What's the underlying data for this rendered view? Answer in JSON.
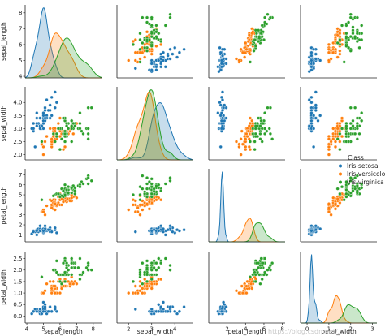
{
  "chart_data": {
    "type": "scatter",
    "subtype": "pairplot",
    "variables": [
      "sepal_length",
      "sepal_width",
      "petal_length",
      "petal_width"
    ],
    "ranges": {
      "sepal_length": [
        3.9,
        8.5
      ],
      "sepal_width": [
        1.8,
        4.6
      ],
      "petal_length": [
        0.3,
        7.6
      ],
      "petal_width": [
        -0.3,
        2.8
      ]
    },
    "ticks": {
      "sepal_length": [
        4,
        5,
        6,
        7,
        8
      ],
      "sepal_width": [
        2.0,
        2.5,
        3.0,
        3.5,
        4.0
      ],
      "petal_length": [
        1,
        2,
        3,
        4,
        5,
        6,
        7
      ],
      "petal_width": [
        0.0,
        0.5,
        1.0,
        1.5,
        2.0,
        2.5
      ]
    },
    "tick_labels": {
      "sepal_length": [
        "4",
        "5",
        "6",
        "7",
        "8"
      ],
      "sepal_width": [
        "2.0",
        "2.5",
        "3.0",
        "3.5",
        "4.0"
      ],
      "petal_length": [
        "1",
        "2",
        "3",
        "4",
        "5",
        "6",
        "7"
      ],
      "petal_width": [
        "0.0",
        "0.5",
        "1.0",
        "1.5",
        "2.0",
        "2.5"
      ]
    },
    "x_tick_labels_shown": {
      "sepal_length": [
        "4",
        "5",
        "6",
        "7",
        "8"
      ],
      "sepal_width": [
        "2",
        "3",
        "4"
      ],
      "petal_length": [
        "2",
        "4",
        "6",
        "8"
      ],
      "petal_width": [
        "0",
        "1",
        "2",
        "3"
      ]
    },
    "x_tick_values_shown": {
      "sepal_length": [
        4,
        5,
        6,
        7,
        8
      ],
      "sepal_width": [
        2,
        3,
        4
      ],
      "petal_length": [
        2,
        4,
        6,
        8
      ],
      "petal_width": [
        0,
        1,
        2,
        3
      ]
    },
    "x_ranges": {
      "sepal_length": [
        3.9,
        8.5
      ],
      "sepal_width": [
        1.5,
        4.8
      ],
      "petal_length": [
        0.0,
        8.3
      ],
      "petal_width": [
        -0.3,
        3.2
      ]
    },
    "legend": {
      "title": "Class",
      "position": "right",
      "entries": [
        "Iris-setosa",
        "Iris-versicolor",
        "Iris-virginica"
      ]
    },
    "colors": {
      "Iris-setosa": "#1f77b4",
      "Iris-versicolor": "#ff7f0e",
      "Iris-virginica": "#2ca02c"
    },
    "series": [
      {
        "name": "Iris-setosa",
        "sepal_length": [
          5.1,
          4.9,
          4.7,
          4.6,
          5.0,
          5.4,
          4.6,
          5.0,
          4.4,
          4.9,
          5.4,
          4.8,
          4.8,
          4.3,
          5.8,
          5.7,
          5.4,
          5.1,
          5.7,
          5.1,
          5.4,
          5.1,
          4.6,
          5.1,
          4.8,
          5.0,
          5.0,
          5.2,
          5.2,
          4.7,
          4.8,
          5.4,
          5.2,
          5.5,
          4.9,
          5.0,
          5.5,
          4.9,
          4.4,
          5.1,
          5.0,
          4.5,
          4.4,
          5.0,
          5.1,
          4.8,
          5.1,
          4.6,
          5.3,
          5.0
        ],
        "sepal_width": [
          3.5,
          3.0,
          3.2,
          3.1,
          3.6,
          3.9,
          3.4,
          3.4,
          2.9,
          3.1,
          3.7,
          3.4,
          3.0,
          3.0,
          4.0,
          4.4,
          3.9,
          3.5,
          3.8,
          3.8,
          3.4,
          3.7,
          3.6,
          3.3,
          3.4,
          3.0,
          3.4,
          3.5,
          3.4,
          3.2,
          3.1,
          3.4,
          4.1,
          4.2,
          3.1,
          3.2,
          3.5,
          3.1,
          3.0,
          3.4,
          3.5,
          2.3,
          3.2,
          3.5,
          3.8,
          3.0,
          3.8,
          3.2,
          3.7,
          3.3
        ],
        "petal_length": [
          1.4,
          1.4,
          1.3,
          1.5,
          1.4,
          1.7,
          1.4,
          1.5,
          1.4,
          1.5,
          1.5,
          1.6,
          1.4,
          1.1,
          1.2,
          1.5,
          1.3,
          1.4,
          1.7,
          1.5,
          1.7,
          1.5,
          1.0,
          1.7,
          1.9,
          1.6,
          1.6,
          1.5,
          1.4,
          1.6,
          1.6,
          1.5,
          1.5,
          1.4,
          1.5,
          1.2,
          1.3,
          1.5,
          1.3,
          1.5,
          1.3,
          1.3,
          1.3,
          1.6,
          1.9,
          1.4,
          1.6,
          1.4,
          1.5,
          1.4
        ],
        "petal_width": [
          0.2,
          0.2,
          0.2,
          0.2,
          0.2,
          0.4,
          0.3,
          0.2,
          0.2,
          0.1,
          0.2,
          0.2,
          0.1,
          0.1,
          0.2,
          0.4,
          0.4,
          0.3,
          0.3,
          0.3,
          0.2,
          0.4,
          0.2,
          0.5,
          0.2,
          0.2,
          0.4,
          0.2,
          0.2,
          0.2,
          0.2,
          0.4,
          0.1,
          0.2,
          0.1,
          0.2,
          0.2,
          0.1,
          0.2,
          0.2,
          0.3,
          0.3,
          0.2,
          0.6,
          0.4,
          0.3,
          0.2,
          0.2,
          0.2,
          0.2
        ]
      },
      {
        "name": "Iris-versicolor",
        "sepal_length": [
          7.0,
          6.4,
          6.9,
          5.5,
          6.5,
          5.7,
          6.3,
          4.9,
          6.6,
          5.2,
          5.0,
          5.9,
          6.0,
          6.1,
          5.6,
          6.7,
          5.6,
          5.8,
          6.2,
          5.6,
          5.9,
          6.1,
          6.3,
          6.1,
          6.4,
          6.6,
          6.8,
          6.7,
          6.0,
          5.7,
          5.5,
          5.5,
          5.8,
          6.0,
          5.4,
          6.0,
          6.7,
          6.3,
          5.6,
          5.5,
          5.5,
          6.1,
          5.8,
          5.0,
          5.6,
          5.7,
          5.7,
          6.2,
          5.1,
          5.7
        ],
        "sepal_width": [
          3.2,
          3.2,
          3.1,
          2.3,
          2.8,
          2.8,
          3.3,
          2.4,
          2.9,
          2.7,
          2.0,
          3.0,
          2.2,
          2.9,
          2.9,
          3.1,
          3.0,
          2.7,
          2.2,
          2.5,
          3.2,
          2.8,
          2.5,
          2.8,
          2.9,
          3.0,
          2.8,
          3.0,
          2.9,
          2.6,
          2.4,
          2.4,
          2.7,
          2.7,
          3.0,
          3.4,
          3.1,
          2.3,
          3.0,
          2.5,
          2.6,
          3.0,
          2.6,
          2.3,
          2.7,
          3.0,
          2.9,
          2.9,
          2.5,
          2.8
        ],
        "petal_length": [
          4.7,
          4.5,
          4.9,
          4.0,
          4.6,
          4.5,
          4.7,
          3.3,
          4.6,
          3.9,
          3.5,
          4.2,
          4.0,
          4.7,
          3.6,
          4.4,
          4.5,
          4.1,
          4.5,
          3.9,
          4.8,
          4.0,
          4.9,
          4.7,
          4.3,
          4.4,
          4.8,
          5.0,
          4.5,
          3.5,
          3.8,
          3.7,
          3.9,
          5.1,
          4.5,
          4.5,
          4.7,
          4.4,
          4.1,
          4.0,
          4.4,
          4.6,
          4.0,
          3.3,
          4.2,
          4.2,
          4.2,
          4.3,
          3.0,
          4.1
        ],
        "petal_width": [
          1.4,
          1.5,
          1.5,
          1.3,
          1.5,
          1.3,
          1.6,
          1.0,
          1.3,
          1.4,
          1.0,
          1.5,
          1.0,
          1.4,
          1.3,
          1.4,
          1.5,
          1.0,
          1.5,
          1.1,
          1.8,
          1.3,
          1.5,
          1.2,
          1.3,
          1.4,
          1.4,
          1.7,
          1.5,
          1.0,
          1.1,
          1.0,
          1.2,
          1.6,
          1.5,
          1.6,
          1.5,
          1.3,
          1.3,
          1.3,
          1.2,
          1.4,
          1.2,
          1.0,
          1.3,
          1.2,
          1.3,
          1.3,
          1.1,
          1.3
        ]
      },
      {
        "name": "Iris-virginica",
        "sepal_length": [
          6.3,
          5.8,
          7.1,
          6.3,
          6.5,
          7.6,
          4.9,
          7.3,
          6.7,
          7.2,
          6.5,
          6.4,
          6.8,
          5.7,
          5.8,
          6.4,
          6.5,
          7.7,
          7.7,
          6.0,
          6.9,
          5.6,
          7.7,
          6.3,
          6.7,
          7.2,
          6.2,
          6.1,
          6.4,
          7.2,
          7.4,
          7.9,
          6.4,
          6.3,
          6.1,
          7.7,
          6.3,
          6.4,
          6.0,
          6.9,
          6.7,
          6.9,
          5.8,
          6.8,
          6.7,
          6.7,
          6.3,
          6.5,
          6.2,
          5.9
        ],
        "sepal_width": [
          3.3,
          2.7,
          3.0,
          2.9,
          3.0,
          3.0,
          2.5,
          2.9,
          2.5,
          3.6,
          3.2,
          2.7,
          3.0,
          2.5,
          2.8,
          3.2,
          3.0,
          3.8,
          2.6,
          2.2,
          3.2,
          2.8,
          2.8,
          2.7,
          3.3,
          3.2,
          2.8,
          3.0,
          2.8,
          3.0,
          2.8,
          3.8,
          2.8,
          2.8,
          2.6,
          3.0,
          3.4,
          3.1,
          3.0,
          3.1,
          3.1,
          3.1,
          2.7,
          3.2,
          3.3,
          3.0,
          2.5,
          3.0,
          3.4,
          3.0
        ],
        "petal_length": [
          6.0,
          5.1,
          5.9,
          5.6,
          5.8,
          6.6,
          4.5,
          6.3,
          5.8,
          6.1,
          5.1,
          5.3,
          5.5,
          5.0,
          5.1,
          5.3,
          5.5,
          6.7,
          6.9,
          5.0,
          5.7,
          4.9,
          6.7,
          4.9,
          5.7,
          6.0,
          4.8,
          4.9,
          5.6,
          5.8,
          6.1,
          6.4,
          5.6,
          5.1,
          5.6,
          6.1,
          5.6,
          5.5,
          4.8,
          5.4,
          5.6,
          5.1,
          5.1,
          5.9,
          5.7,
          5.2,
          5.0,
          5.2,
          5.4,
          5.1
        ],
        "petal_width": [
          2.5,
          1.9,
          2.1,
          1.8,
          2.2,
          2.1,
          1.7,
          1.8,
          1.8,
          2.5,
          2.0,
          1.9,
          2.1,
          2.0,
          2.4,
          2.3,
          1.8,
          2.2,
          2.3,
          1.5,
          2.3,
          2.0,
          2.0,
          1.8,
          2.1,
          1.8,
          1.8,
          1.8,
          2.1,
          1.6,
          1.9,
          2.0,
          2.2,
          1.5,
          1.4,
          2.3,
          2.4,
          1.8,
          1.8,
          2.1,
          2.4,
          2.3,
          1.9,
          2.3,
          2.5,
          2.3,
          1.9,
          2.0,
          2.3,
          1.8
        ]
      }
    ]
  },
  "watermark": "https://blog.csdn.net/..."
}
